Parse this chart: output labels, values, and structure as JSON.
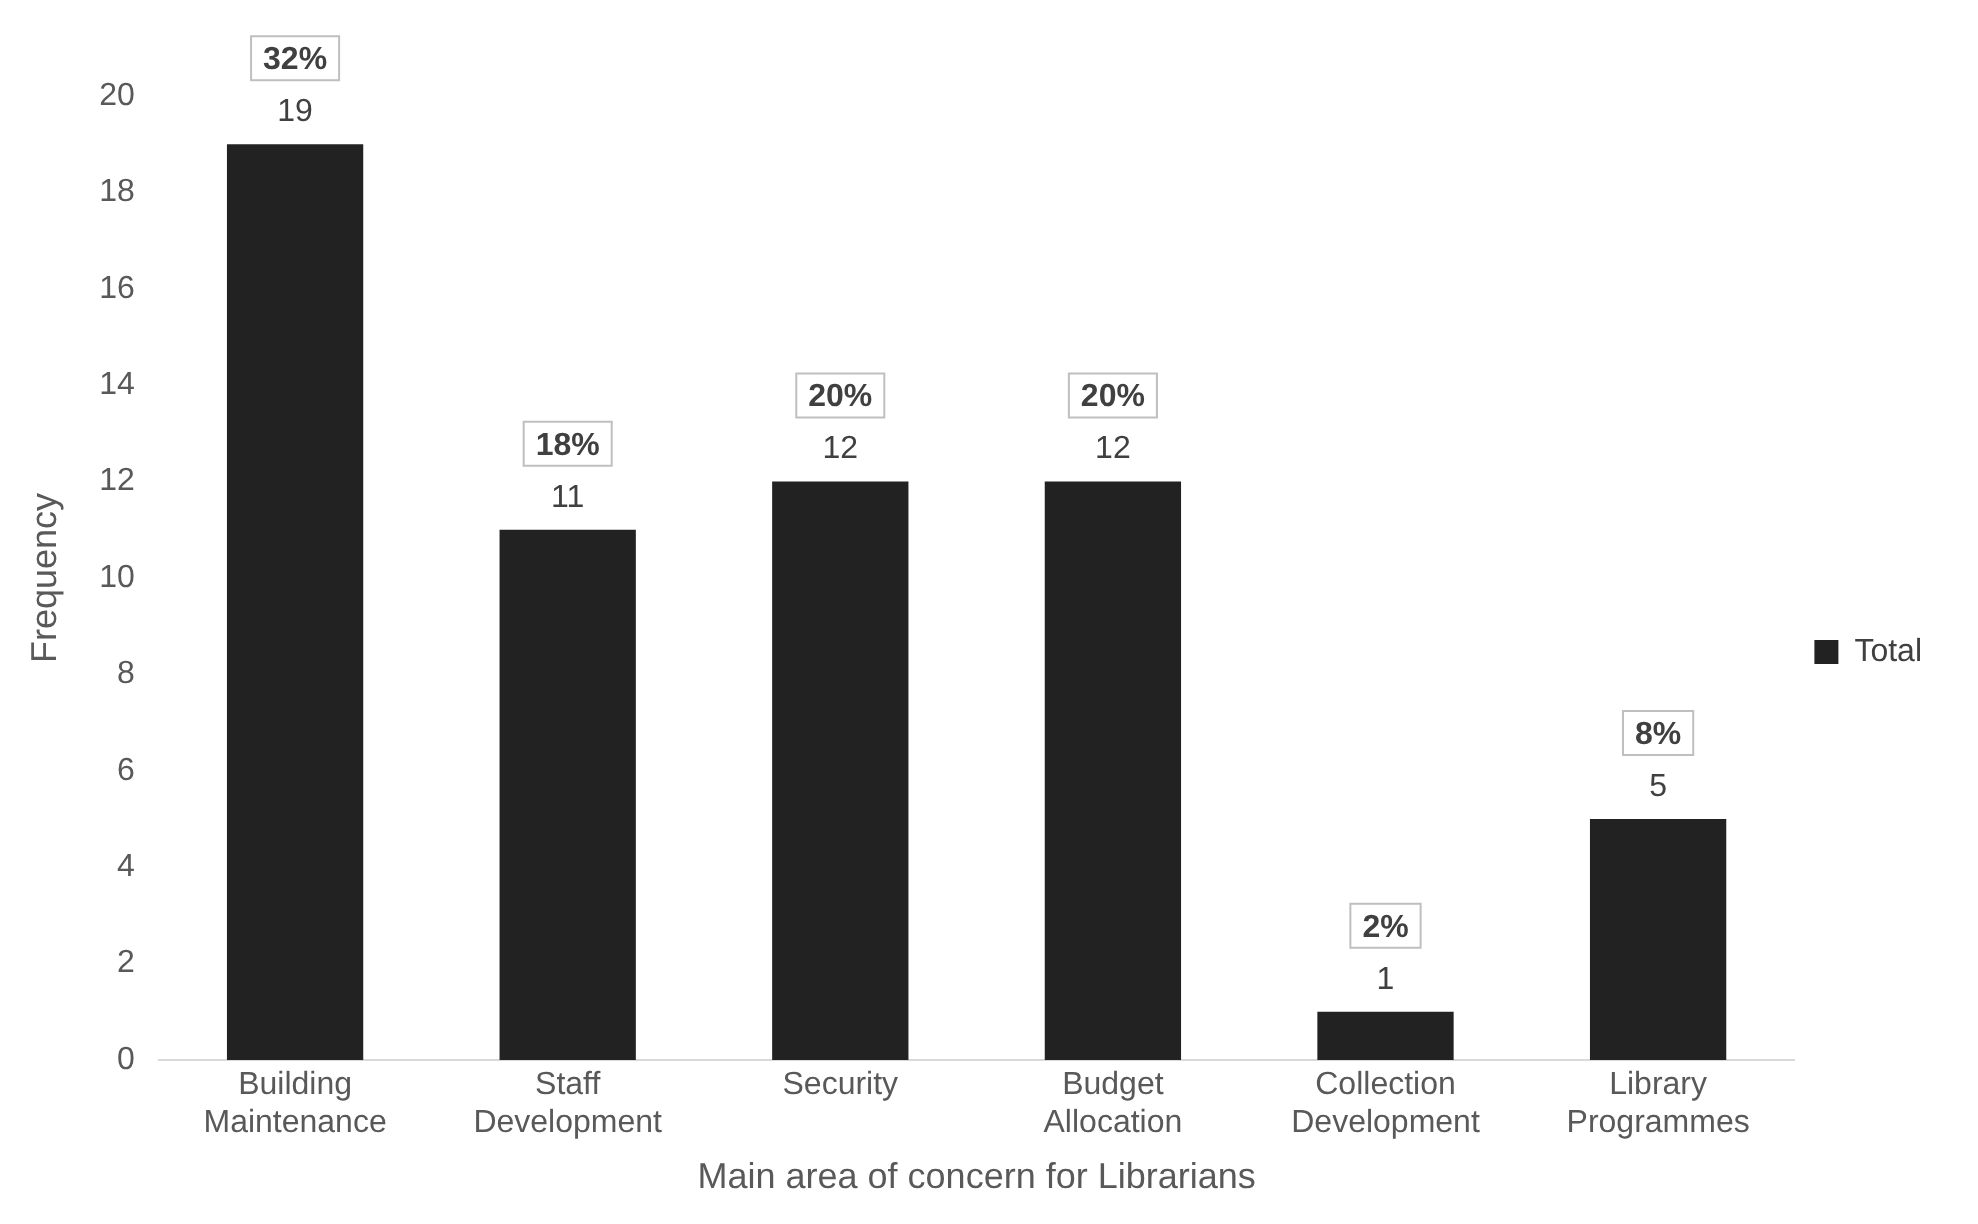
{
  "chart_data": {
    "type": "bar",
    "xlabel": "Main area of concern for Librarians",
    "ylabel": "Frequency",
    "categories": [
      "Building Maintenance",
      "Staff Development",
      "Security",
      "Budget Allocation",
      "Collection Development",
      "Library Programmes"
    ],
    "series": [
      {
        "name": "Total",
        "color": "#222222",
        "values": [
          19,
          11,
          12,
          12,
          1,
          5
        ]
      }
    ],
    "ylim": [
      0,
      20
    ],
    "yticks": [
      0,
      2,
      4,
      6,
      8,
      10,
      12,
      14,
      16,
      18,
      20
    ],
    "grid": false,
    "legend": "right",
    "data_labels": true,
    "annotations": [
      {
        "text": "32%",
        "x": "Building Maintenance",
        "y": 19
      },
      {
        "text": "18%",
        "x": "Staff Development",
        "y": 11
      },
      {
        "text": "20%",
        "x": "Security",
        "y": 12
      },
      {
        "text": "20%",
        "x": "Budget Allocation",
        "y": 12
      },
      {
        "text": "2%",
        "x": "Collection Development",
        "y": 1
      },
      {
        "text": "8%",
        "x": "Library Programmes",
        "y": 5
      }
    ]
  }
}
